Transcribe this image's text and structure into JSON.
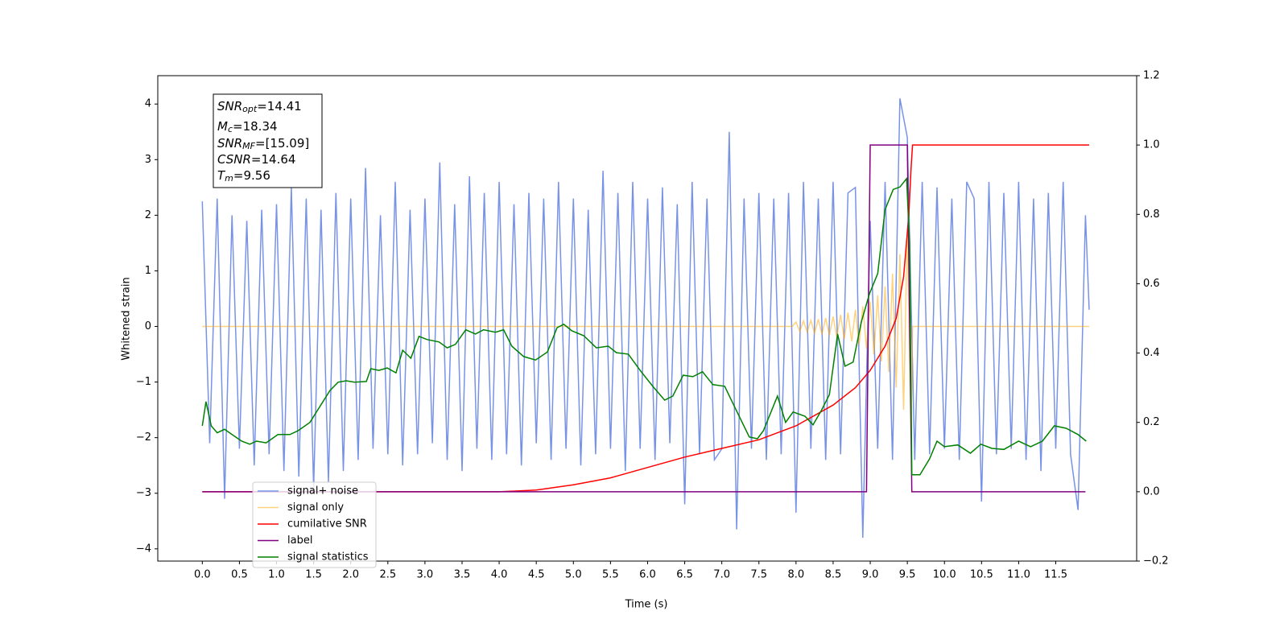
{
  "chart_data": {
    "type": "line",
    "x_label": "Time (s)",
    "y_label": "Whitened strain",
    "xlim": [
      -0.6,
      12.59
    ],
    "ylim": [
      -4.22,
      4.51
    ],
    "y2lim": [
      -0.2,
      1.2
    ],
    "xticks": [
      {
        "value": 0,
        "label": "0.0"
      },
      0.5,
      {
        "value": 1,
        "label": "1.0"
      },
      1.5,
      {
        "value": 2,
        "label": "2.0"
      },
      2.5,
      {
        "value": 3,
        "label": "3.0"
      },
      3.5,
      {
        "value": 4,
        "label": "4.0"
      },
      4.5,
      {
        "value": 5,
        "label": "5.0"
      },
      5.5,
      {
        "value": 6,
        "label": "6.0"
      },
      6.5,
      {
        "value": 7,
        "label": "7.0"
      },
      7.5,
      {
        "value": 8,
        "label": "8.0"
      },
      8.5,
      {
        "value": 9,
        "label": "9.0"
      },
      9.5,
      {
        "value": 10,
        "label": "10.0"
      },
      10.5,
      {
        "value": 11,
        "label": "11.0"
      },
      11.5
    ],
    "yticks": [
      {
        "value": -4,
        "label": "−4"
      },
      {
        "value": -3,
        "label": "−3"
      },
      {
        "value": -2,
        "label": "−2"
      },
      {
        "value": -1,
        "label": "−1"
      },
      0,
      1,
      2,
      3,
      4
    ],
    "y2ticks": [
      {
        "value": -0.2,
        "label": "−0.2"
      },
      {
        "value": 0,
        "label": "0.0"
      },
      0.2,
      0.4,
      0.6,
      0.8,
      {
        "value": 1,
        "label": "1.0"
      },
      1.2
    ],
    "annotation": [
      {
        "main": "SNR",
        "sub": "opt",
        "value": "=14.41"
      },
      {
        "main": "M",
        "sub": "c",
        "value": "=18.34"
      },
      {
        "main": "SNR",
        "sub": "MF",
        "value": "=[15.09]"
      },
      {
        "main": "CSNR",
        "sub": null,
        "value": "=14.64"
      },
      {
        "main": "T",
        "sub": "m",
        "value": "=9.56"
      }
    ],
    "series": [
      {
        "name": "signal+ noise",
        "color": "#7893e6",
        "x": [
          0,
          0.1,
          0.2,
          0.3,
          0.4,
          0.5,
          0.6,
          0.7,
          0.8,
          0.9,
          1,
          1.1,
          1.2,
          1.3,
          1.4,
          1.5,
          1.6,
          1.7,
          1.8,
          1.9,
          2,
          2.1,
          2.2,
          2.3,
          2.4,
          2.5,
          2.6,
          2.7,
          2.8,
          2.9,
          3,
          3.1,
          3.2,
          3.3,
          3.4,
          3.5,
          3.6,
          3.7,
          3.8,
          3.9,
          4,
          4.1,
          4.2,
          4.3,
          4.4,
          4.5,
          4.6,
          4.7,
          4.8,
          4.9,
          5,
          5.1,
          5.2,
          5.3,
          5.4,
          5.5,
          5.6,
          5.7,
          5.8,
          5.9,
          6,
          6.1,
          6.2,
          6.3,
          6.4,
          6.5,
          6.6,
          6.7,
          6.8,
          6.9,
          7,
          7.1,
          7.2,
          7.3,
          7.4,
          7.5,
          7.6,
          7.7,
          7.8,
          7.9,
          8,
          8.1,
          8.2,
          8.3,
          8.4,
          8.5,
          8.6,
          8.7,
          8.8,
          8.9,
          9,
          9.1,
          9.2,
          9.3,
          9.4,
          9.5,
          9.6,
          9.7,
          9.8,
          9.9,
          10,
          10.1,
          10.2,
          10.3,
          10.4,
          10.5,
          10.6,
          10.7,
          10.8,
          10.9,
          11,
          11.1,
          11.2,
          11.3,
          11.4,
          11.5,
          11.6,
          11.7,
          11.8,
          11.9,
          11.95
        ],
        "values": [
          2.25,
          -2.1,
          2.3,
          -3.1,
          2.0,
          -2.2,
          1.9,
          -2.5,
          2.1,
          -2.3,
          2.2,
          -2.6,
          2.5,
          -2.7,
          2.3,
          -2.9,
          2.1,
          -2.8,
          2.4,
          -2.6,
          2.3,
          -2.4,
          2.85,
          -2.2,
          2.0,
          -2.3,
          2.6,
          -2.5,
          2.1,
          -2.3,
          2.3,
          -2.1,
          2.95,
          -2.4,
          2.2,
          -2.6,
          2.7,
          -2.2,
          2.4,
          -2.4,
          2.6,
          -2.3,
          2.2,
          -2.5,
          2.4,
          -2.1,
          2.3,
          -2.4,
          2.6,
          -2.2,
          2.3,
          -2.5,
          2.1,
          -2.3,
          2.8,
          -2.2,
          2.4,
          -2.6,
          2.6,
          -2.2,
          2.3,
          -2.4,
          2.5,
          -2.1,
          2.2,
          -3.2,
          2.6,
          -2.3,
          2.3,
          -2.4,
          -2.2,
          3.5,
          -3.65,
          2.3,
          -2.2,
          2.4,
          -2.4,
          2.3,
          -2.3,
          2.4,
          -3.35,
          2.6,
          -2.2,
          2.3,
          -2.4,
          2.6,
          -2.3,
          2.4,
          2.5,
          -3.8,
          1.9,
          -2.2,
          2.6,
          -2.4,
          4.1,
          3.4,
          -2.4,
          2.6,
          -2.3,
          2.5,
          -2.2,
          2.3,
          -2.4,
          2.6,
          2.3,
          -3.15,
          2.6,
          -2.3,
          2.4,
          -2.2,
          2.6,
          -2.4,
          2.3,
          -2.6,
          2.4,
          -2.2,
          2.6,
          -2.3,
          -3.3,
          2.0,
          0.3
        ]
      },
      {
        "name": "signal only",
        "color": "#ffa500",
        "x": [
          0,
          7.95,
          8.0,
          8.05,
          8.1,
          8.15,
          8.2,
          8.25,
          8.3,
          8.35,
          8.4,
          8.45,
          8.5,
          8.55,
          8.6,
          8.65,
          8.7,
          8.75,
          8.8,
          8.85,
          8.9,
          8.95,
          9.0,
          9.05,
          9.1,
          9.15,
          9.2,
          9.25,
          9.3,
          9.35,
          9.4,
          9.45,
          9.5,
          9.55,
          9.57,
          11.95
        ],
        "values": [
          0,
          0,
          0.08,
          -0.09,
          0.1,
          -0.1,
          0.11,
          -0.12,
          0.13,
          -0.14,
          0.15,
          -0.16,
          0.18,
          -0.19,
          0.21,
          -0.23,
          0.25,
          -0.27,
          0.3,
          -0.33,
          0.36,
          -0.4,
          0.45,
          -0.5,
          0.56,
          -0.63,
          0.72,
          -0.82,
          0.95,
          -1.1,
          1.3,
          -1.5,
          1.75,
          -2.0,
          0,
          0
        ]
      },
      {
        "name": "cumilative SNR",
        "color": "#ff0000",
        "axis": "y2",
        "x": [
          0,
          4.0,
          4.5,
          5.0,
          5.5,
          6.0,
          6.5,
          7.0,
          7.5,
          8.0,
          8.5,
          8.8,
          9.0,
          9.2,
          9.35,
          9.45,
          9.52,
          9.55,
          9.57,
          11.95
        ],
        "values": [
          0,
          0,
          0.005,
          0.02,
          0.04,
          0.07,
          0.1,
          0.125,
          0.15,
          0.19,
          0.25,
          0.3,
          0.35,
          0.42,
          0.5,
          0.62,
          0.8,
          0.93,
          1.0,
          1.0
        ]
      },
      {
        "name": "label",
        "color": "#800080",
        "axis": "y2",
        "x": [
          0,
          8.95,
          9.0,
          9.5,
          9.56,
          11.9
        ],
        "values": [
          0,
          0,
          1,
          1,
          0,
          0
        ]
      },
      {
        "name": "signal statistics",
        "color": "#008000",
        "axis": "y2",
        "x": [
          0,
          0.05,
          0.12,
          0.2,
          0.3,
          0.4,
          0.53,
          0.64,
          0.73,
          0.86,
          1.02,
          1.18,
          1.29,
          1.45,
          1.62,
          1.72,
          1.83,
          1.94,
          2.05,
          2.21,
          2.27,
          2.38,
          2.49,
          2.61,
          2.7,
          2.81,
          2.92,
          3.03,
          3.19,
          3.3,
          3.41,
          3.55,
          3.68,
          3.79,
          3.95,
          4.06,
          4.17,
          4.33,
          4.49,
          4.65,
          4.78,
          4.87,
          4.98,
          5.14,
          5.31,
          5.47,
          5.58,
          5.74,
          5.9,
          6.07,
          6.23,
          6.34,
          6.48,
          6.61,
          6.74,
          6.88,
          7.04,
          7.17,
          7.37,
          7.48,
          7.56,
          7.75,
          7.86,
          7.96,
          8.12,
          8.23,
          8.34,
          8.45,
          8.56,
          8.66,
          8.77,
          8.88,
          8.99,
          9.1,
          9.2,
          9.31,
          9.4,
          9.49,
          9.53,
          9.56,
          9.67,
          9.8,
          9.9,
          10.0,
          10.18,
          10.35,
          10.49,
          10.64,
          10.8,
          11.0,
          11.16,
          11.32,
          11.48,
          11.64,
          11.8,
          11.91
        ],
        "values": [
          0.19,
          0.26,
          0.19,
          0.17,
          0.18,
          0.165,
          0.146,
          0.137,
          0.146,
          0.141,
          0.165,
          0.165,
          0.176,
          0.2,
          0.258,
          0.292,
          0.316,
          0.32,
          0.316,
          0.318,
          0.355,
          0.35,
          0.357,
          0.343,
          0.408,
          0.385,
          0.448,
          0.439,
          0.432,
          0.415,
          0.425,
          0.467,
          0.455,
          0.467,
          0.46,
          0.467,
          0.42,
          0.39,
          0.38,
          0.403,
          0.473,
          0.483,
          0.464,
          0.45,
          0.415,
          0.42,
          0.401,
          0.397,
          0.35,
          0.304,
          0.264,
          0.276,
          0.336,
          0.332,
          0.346,
          0.309,
          0.304,
          0.246,
          0.158,
          0.153,
          0.176,
          0.276,
          0.2,
          0.23,
          0.218,
          0.193,
          0.234,
          0.28,
          0.455,
          0.362,
          0.374,
          0.49,
          0.571,
          0.629,
          0.814,
          0.872,
          0.879,
          0.903,
          0.722,
          0.049,
          0.049,
          0.095,
          0.146,
          0.13,
          0.135,
          0.111,
          0.137,
          0.125,
          0.122,
          0.146,
          0.13,
          0.146,
          0.19,
          0.183,
          0.165,
          0.146
        ]
      }
    ],
    "legend": "lower left"
  }
}
